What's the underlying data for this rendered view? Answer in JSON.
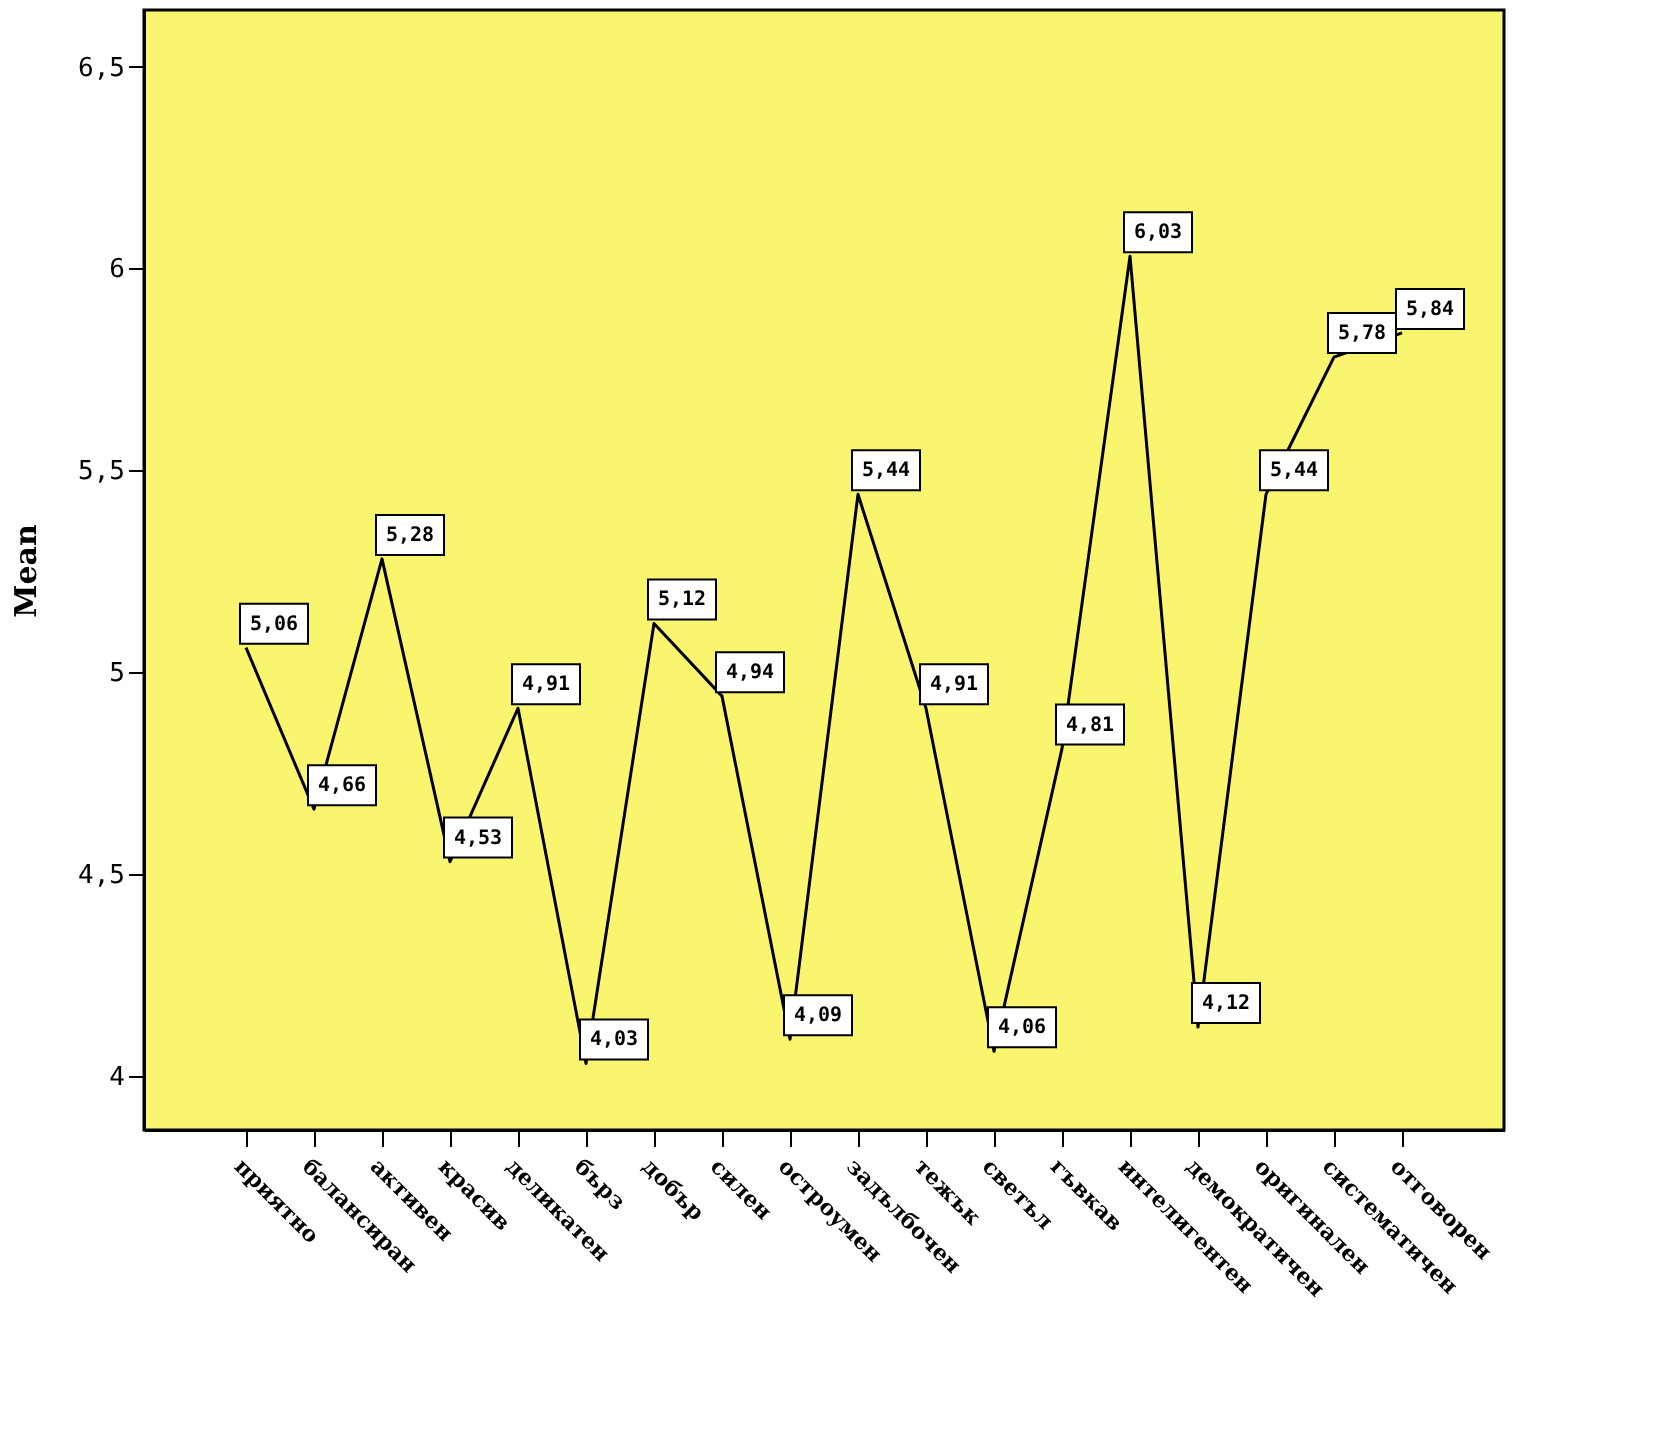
{
  "chart_data": {
    "type": "line",
    "ylabel": "Mean",
    "categories": [
      "приятно",
      "балансиран",
      "активен",
      "красив",
      "деликатен",
      "бърз",
      "добър",
      "силен",
      "остроумен",
      "задълбочен",
      "тежък",
      "светъл",
      "гъвкав",
      "интелигентен",
      "демократичен",
      "оригинален",
      "систематичен",
      "отговорен"
    ],
    "series": [
      {
        "color": "#000000",
        "values": [
          5.06,
          4.66,
          5.28,
          4.53,
          4.91,
          4.03,
          5.12,
          4.94,
          4.09,
          5.44,
          4.91,
          4.06,
          4.81,
          6.03,
          4.12,
          5.44,
          5.78,
          5.84
        ],
        "value_labels": [
          "5,06",
          "4,66",
          "5,28",
          "4,53",
          "4,91",
          "4,03",
          "5,12",
          "4,94",
          "4,09",
          "5,44",
          "4,91",
          "4,06",
          "4,81",
          "6,03",
          "4,12",
          "5,44",
          "5,78",
          "5,84"
        ]
      }
    ],
    "ylim": [
      3.865,
      6.64
    ],
    "yticks": [
      4,
      {
        "value": 4.5,
        "label": "4,5"
      },
      5,
      {
        "value": 5.5,
        "label": "5,5"
      },
      6,
      {
        "value": 6.5,
        "label": "6,5"
      }
    ],
    "grid": false,
    "line_style": "solid"
  }
}
